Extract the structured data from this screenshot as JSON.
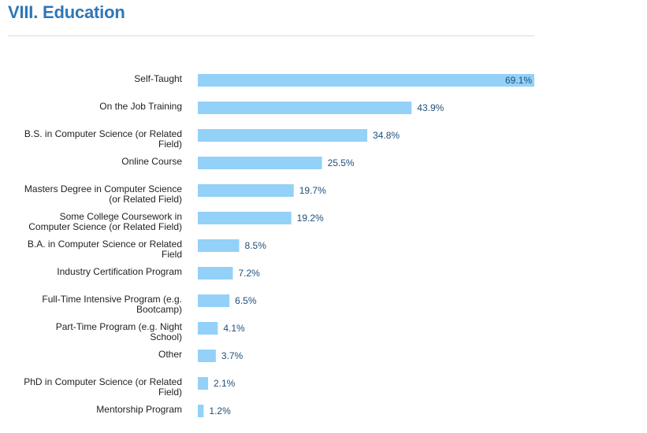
{
  "header": {
    "title": "VIII. Education"
  },
  "colors": {
    "title": "#2d77b8",
    "bar": "#93d1f8",
    "value_label": "#1d4f7a",
    "category_label": "#222222",
    "rule": "#dcdcdc"
  },
  "chart_data": {
    "type": "bar",
    "orientation": "horizontal",
    "categories": [
      "Self-Taught",
      "On the Job Training",
      "B.S. in Computer Science (or Related Field)",
      "Online Course",
      "Masters Degree in Computer Science (or Related Field)",
      "Some College Coursework in Computer Science (or Related Field)",
      "B.A. in Computer Science or Related Field",
      "Industry Certification Program",
      "Full-Time Intensive Program (e.g. Bootcamp)",
      "Part-Time Program (e.g. Night School)",
      "Other",
      "PhD in Computer Science (or Related Field)",
      "Mentorship Program"
    ],
    "category_lines": [
      [
        "Self-Taught"
      ],
      [
        "On the Job Training"
      ],
      [
        "B.S. in Computer Science (or Related",
        "Field)"
      ],
      [
        "Online Course"
      ],
      [
        "Masters Degree in Computer Science",
        "(or Related Field)"
      ],
      [
        "Some College Coursework in",
        "Computer Science (or Related Field)"
      ],
      [
        "B.A. in Computer Science or Related",
        "Field"
      ],
      [
        "Industry Certification Program"
      ],
      [
        "Full-Time Intensive Program (e.g.",
        "Bootcamp)"
      ],
      [
        "Part-Time Program (e.g. Night",
        "School)"
      ],
      [
        "Other"
      ],
      [
        "PhD in Computer Science (or Related",
        "Field)"
      ],
      [
        "Mentorship Program"
      ]
    ],
    "values": [
      69.1,
      43.9,
      34.8,
      25.5,
      19.7,
      19.2,
      8.5,
      7.2,
      6.5,
      4.1,
      3.7,
      2.1,
      1.2
    ],
    "value_labels": [
      "69.1%",
      "43.9%",
      "34.8%",
      "25.5%",
      "19.7%",
      "19.2%",
      "8.5%",
      "7.2%",
      "6.5%",
      "4.1%",
      "3.7%",
      "2.1%",
      "1.2%"
    ],
    "unit": "%",
    "xlim": [
      0,
      69.1
    ],
    "grid": false,
    "legend": "none"
  }
}
